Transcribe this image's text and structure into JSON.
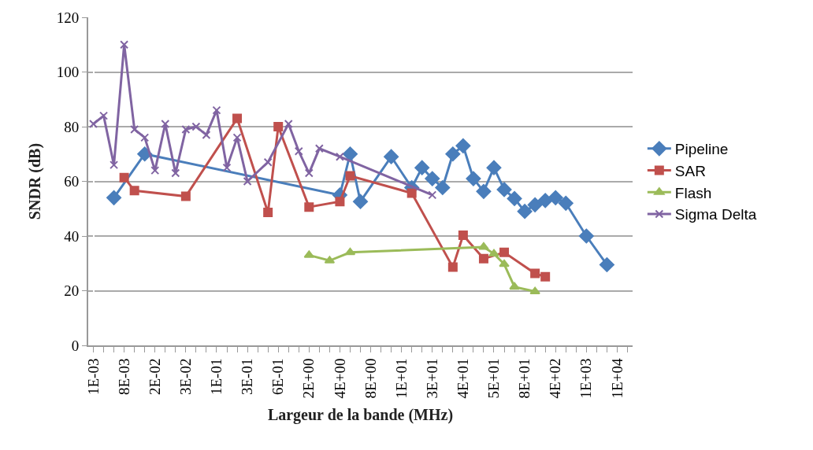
{
  "chart_data": {
    "type": "line",
    "xlabel": "Largeur de la bande (MHz)",
    "ylabel": "SNDR (dB)",
    "categories": [
      "1E-03",
      null,
      null,
      "8E-03",
      null,
      null,
      "2E-02",
      null,
      null,
      "3E-02",
      null,
      null,
      "1E-01",
      null,
      null,
      "3E-01",
      null,
      null,
      "6E-01",
      null,
      null,
      "2E+00",
      null,
      null,
      "4E+00",
      null,
      null,
      "8E+00",
      null,
      null,
      "1E+01",
      null,
      null,
      "3E+01",
      null,
      null,
      "4E+01",
      null,
      null,
      "5E+01",
      null,
      null,
      "8E+01",
      null,
      null,
      "4E+02",
      null,
      null,
      "1E+03",
      null,
      null,
      "1E+04",
      null
    ],
    "series": [
      {
        "name": "Pipeline",
        "color": "#4a7ebb",
        "marker": "diamond",
        "values": [
          null,
          null,
          54,
          null,
          null,
          70,
          null,
          null,
          null,
          null,
          null,
          null,
          null,
          null,
          null,
          null,
          null,
          null,
          null,
          null,
          null,
          null,
          null,
          null,
          55,
          70,
          52.6,
          null,
          null,
          69,
          null,
          57.7,
          65,
          61,
          57.7,
          70,
          73,
          61,
          56.3,
          65,
          57,
          53.7,
          49,
          51.4,
          53,
          54,
          52,
          null,
          40,
          null,
          29.5,
          null,
          null
        ]
      },
      {
        "name": "SAR",
        "color": "#c0504d",
        "marker": "square",
        "values": [
          null,
          null,
          null,
          61.4,
          56.6,
          null,
          null,
          null,
          null,
          54.5,
          null,
          null,
          null,
          null,
          83,
          null,
          null,
          48.6,
          80,
          null,
          null,
          50.6,
          null,
          null,
          52.6,
          62,
          null,
          null,
          null,
          null,
          null,
          55.7,
          null,
          null,
          null,
          28.6,
          40.3,
          null,
          31.7,
          null,
          34,
          null,
          null,
          26.3,
          25.1,
          null,
          null,
          null,
          null,
          null,
          null,
          null,
          null
        ]
      },
      {
        "name": "Flash",
        "color": "#9bbb59",
        "marker": "triangle",
        "values": [
          null,
          null,
          null,
          null,
          null,
          null,
          null,
          null,
          null,
          null,
          null,
          null,
          null,
          null,
          null,
          null,
          null,
          null,
          null,
          null,
          null,
          33,
          null,
          31,
          null,
          34,
          null,
          null,
          null,
          null,
          null,
          null,
          null,
          null,
          null,
          null,
          null,
          null,
          36,
          33.5,
          29.7,
          21.4,
          null,
          19.7,
          null,
          null,
          null,
          null,
          null,
          null,
          null,
          null,
          null
        ]
      },
      {
        "name": "Sigma Delta",
        "color": "#8064a2",
        "marker": "cross",
        "values": [
          81,
          84,
          66,
          110,
          79,
          76,
          64,
          81,
          63,
          79,
          80,
          77,
          86,
          65,
          76,
          60,
          null,
          67,
          null,
          81,
          71,
          63,
          72,
          null,
          69,
          null,
          null,
          null,
          null,
          null,
          null,
          null,
          null,
          55,
          null,
          null,
          null,
          null,
          null,
          null,
          null,
          null,
          null,
          null,
          null,
          null,
          null,
          null,
          null,
          null,
          null,
          null,
          null
        ]
      }
    ],
    "ylim": [
      0,
      120
    ],
    "yticks": [
      0,
      20,
      40,
      60,
      80,
      100,
      120
    ],
    "grid": "y",
    "legend": "right",
    "line_style": "solid"
  }
}
